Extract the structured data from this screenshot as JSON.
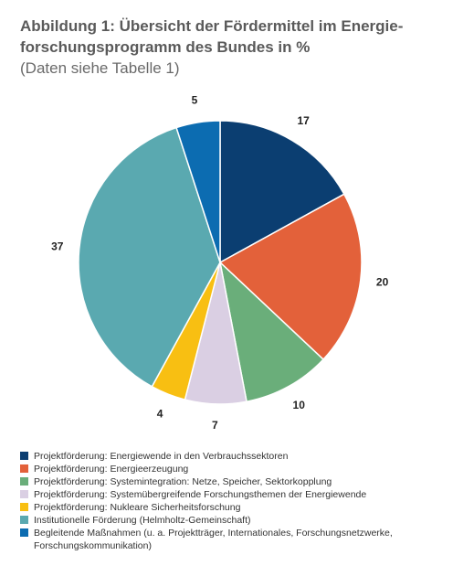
{
  "chart_data": {
    "type": "pie",
    "title": [
      "Abbildung 1: Übersicht der Fördermittel im Energie-",
      "forschungsprogramm des Bundes in %"
    ],
    "subtitle": "(Daten siehe Tabelle 1)",
    "categories": [
      "Projektförderung: Energiewende in den Verbrauchssektoren",
      "Projektförderung: Energieerzeugung",
      "Projektförderung: Systemintegration: Netze, Speicher, Sektorkopplung",
      "Projektförderung: Systemübergreifende Forschungsthemen der Energiewende",
      "Projektförderung: Nukleare Sicherheitsforschung",
      "Institutionelle Förderung (Helmholtz-Gemeinschaft)",
      "Begleitende Maßnahmen (u. a. Projektträger, Internationales, Forschungsnetzwerke, Forschungskommunikation)"
    ],
    "values": [
      17,
      20,
      10,
      7,
      4,
      37,
      5
    ],
    "colors": [
      "#0b3e71",
      "#e3613a",
      "#6aae7a",
      "#dacfe3",
      "#f8bf12",
      "#5aa9b0",
      "#0c6cb1"
    ]
  }
}
